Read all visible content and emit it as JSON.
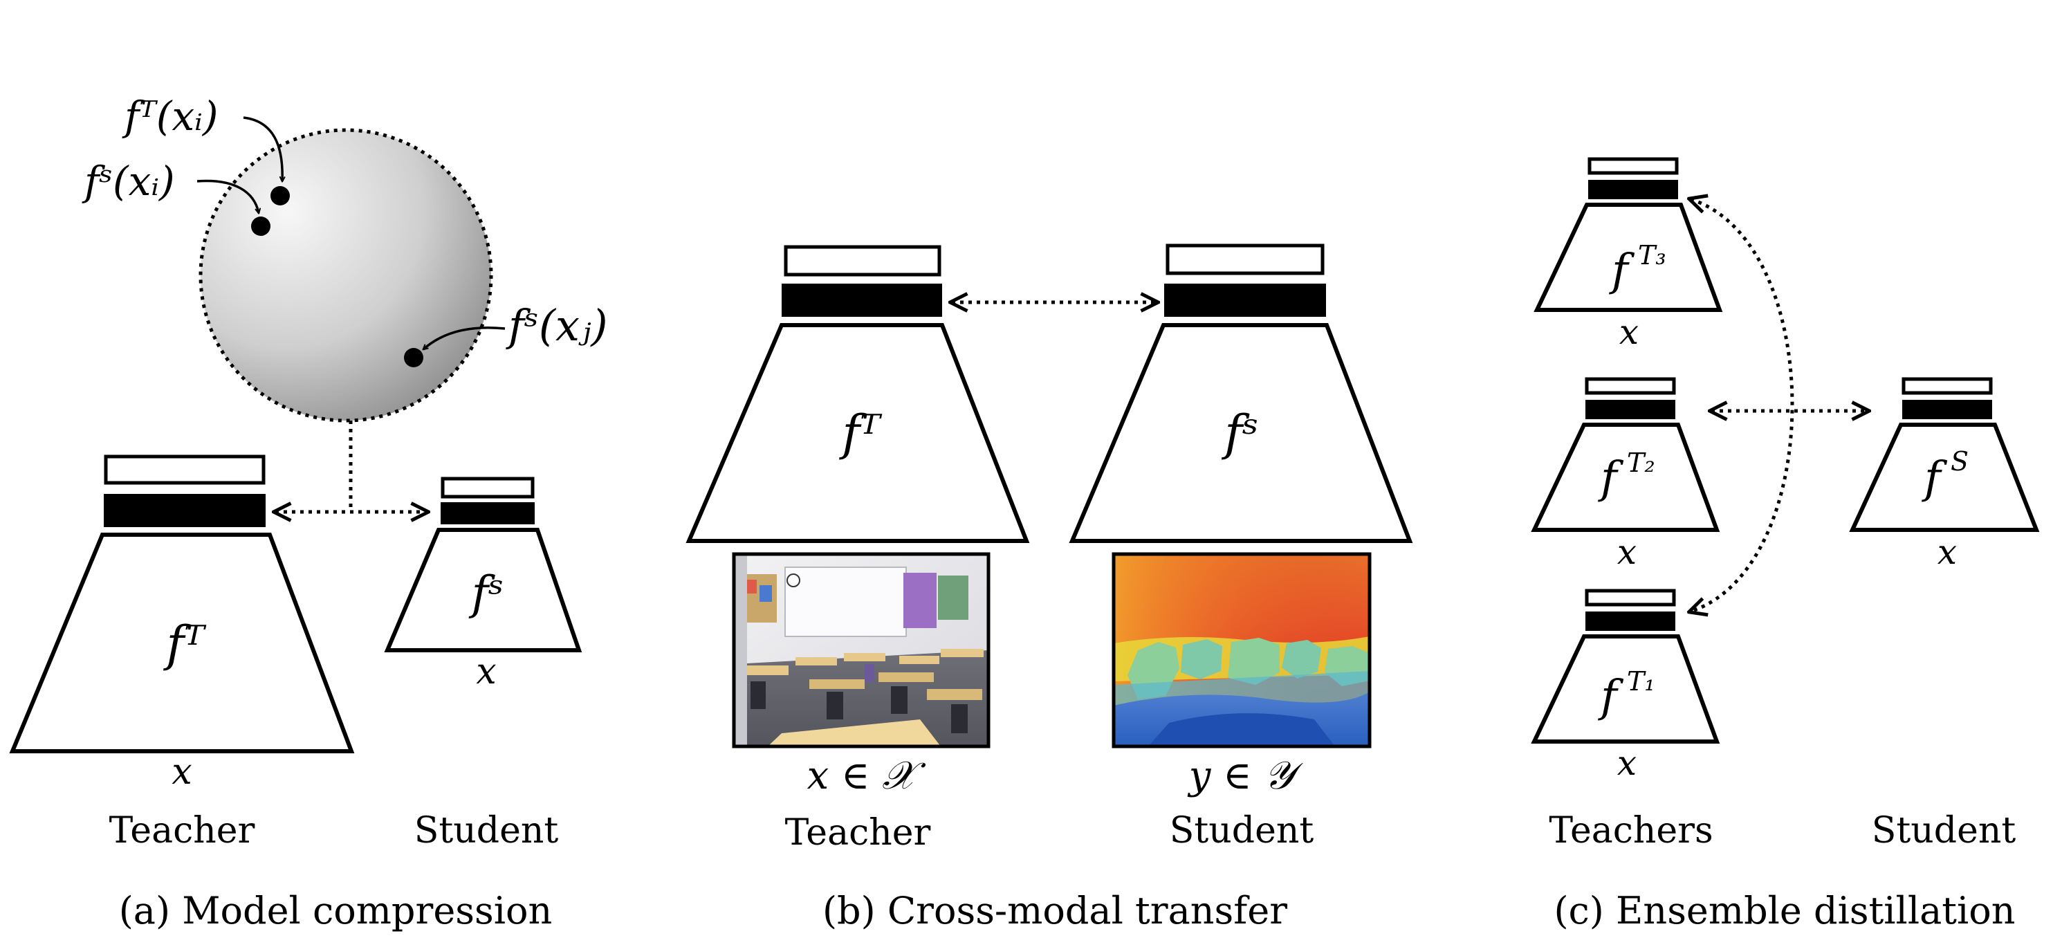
{
  "panel_a": {
    "caption": "(a) Model compression",
    "point_fT_xi": "fᵀ(xᵢ)",
    "point_fS_xi": "fˢ(xᵢ)",
    "point_fS_xj": "fˢ(xⱼ)",
    "teacher_net": "fᵀ",
    "student_net": "fˢ",
    "teacher_input": "x",
    "student_input": "x",
    "teacher_label": "Teacher",
    "student_label": "Student"
  },
  "panel_b": {
    "caption": "(b) Cross-modal transfer",
    "teacher_net": "fᵀ",
    "student_net": "fˢ",
    "teacher_input": "x ∈ 𝒳",
    "student_input": "y ∈ 𝒴",
    "teacher_label": "Teacher",
    "student_label": "Student"
  },
  "panel_c": {
    "caption": "(c) Ensemble distillation",
    "teacher_3_net": "f",
    "teacher_3_sup": "T₃",
    "teacher_2_net": "f",
    "teacher_2_sup": "T₂",
    "teacher_1_net": "f",
    "teacher_1_sup": "T₁",
    "student_net": "f",
    "student_sup": "S",
    "teacher_3_input": "x",
    "teacher_2_input": "x",
    "teacher_1_input": "x",
    "student_input": "x",
    "teachers_label": "Teachers",
    "student_label": "Student"
  },
  "colors": {
    "sphere_light": "#f4f4f4",
    "sphere_dark": "#8a8a8a",
    "depth_red": "#d93a22",
    "depth_orange": "#ee8a2a",
    "depth_yellow": "#e8d83a",
    "depth_green": "#8ccf9a",
    "depth_blue": "#2f6fc9"
  }
}
